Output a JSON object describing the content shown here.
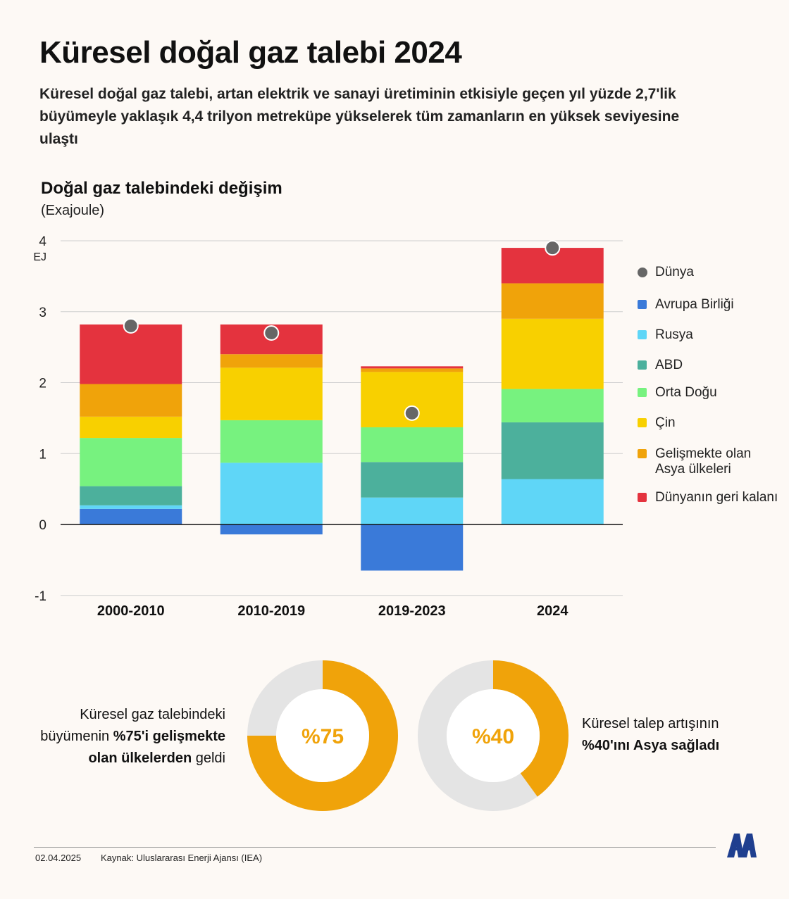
{
  "header": {
    "title": "Küresel doğal gaz talebi 2024",
    "subtitle": "Küresel doğal gaz talebi, artan elektrik ve sanayi üretiminin etkisiyle geçen yıl yüzde 2,7'lik büyümeyle yaklaşık 4,4 trilyon metreküpe yükselerek tüm zamanların en yüksek seviyesine ulaştı"
  },
  "colors": {
    "background": "#fdf9f5",
    "eu": "#3a7ad9",
    "russia": "#5fd6f7",
    "usa": "#4cb09c",
    "middle_east": "#77f27f",
    "china": "#f8d000",
    "dev_asia": "#f0a30a",
    "rest": "#e4333e",
    "world": "#666666",
    "donut_track": "#e4e4e4",
    "donut_fill": "#f0a30a"
  },
  "chart_data": {
    "type": "bar",
    "stacked": true,
    "title": "Doğal gaz talebindeki değişim",
    "unit_label": "(Exajoule)",
    "ylabel": "EJ",
    "ylim": [
      -1,
      4
    ],
    "yticks": [
      -1,
      0,
      1,
      2,
      3,
      4
    ],
    "categories": [
      "2000-2010",
      "2010-2019",
      "2019-2023",
      "2024"
    ],
    "series": [
      {
        "key": "eu",
        "name": "Avrupa Birliği",
        "values": [
          0.22,
          -0.14,
          -0.65,
          0
        ]
      },
      {
        "key": "russia",
        "name": "Rusya",
        "values": [
          0.05,
          0.87,
          0.38,
          0.64
        ]
      },
      {
        "key": "usa",
        "name": "ABD",
        "values": [
          0.27,
          0,
          0.5,
          0.8
        ]
      },
      {
        "key": "middle_east",
        "name": "Orta Doğu",
        "values": [
          0.68,
          0.6,
          0.49,
          0.47
        ]
      },
      {
        "key": "china",
        "name": "Çin",
        "values": [
          0.3,
          0.74,
          0.78,
          0.99
        ]
      },
      {
        "key": "dev_asia",
        "name": "Gelişmekte olan Asya ülkeleri",
        "values": [
          0.46,
          0.19,
          0.05,
          0.5
        ]
      },
      {
        "key": "rest",
        "name": "Dünyanın geri kalanı",
        "values": [
          0.84,
          0.42,
          0.03,
          0.5
        ]
      }
    ],
    "world": {
      "name": "Dünya",
      "values": [
        2.8,
        2.7,
        1.57,
        3.9
      ]
    }
  },
  "legend": [
    {
      "key": "world",
      "label": "Dünya",
      "marker": "circle"
    },
    {
      "key": "eu",
      "label": "Avrupa Birliği"
    },
    {
      "key": "russia",
      "label": "Rusya"
    },
    {
      "key": "usa",
      "label": "ABD"
    },
    {
      "key": "middle_east",
      "label": "Orta Doğu"
    },
    {
      "key": "china",
      "label": "Çin"
    },
    {
      "key": "dev_asia",
      "label": "Gelişmekte olan Asya ülkeleri"
    },
    {
      "key": "rest",
      "label": "Dünyanın geri kalanı"
    }
  ],
  "donuts": {
    "left": {
      "percent": 75,
      "label": "%75",
      "text_pre": "Küresel gaz talebindeki büyümenin ",
      "text_bold": "%75'i gelişmekte olan ülkelerden",
      "text_post": " geldi"
    },
    "right": {
      "percent": 40,
      "label": "%40",
      "text_pre": "Küresel talep artışının ",
      "text_bold": "%40'ını Asya sağladı",
      "text_post": ""
    }
  },
  "footer": {
    "date": "02.04.2025",
    "source": "Kaynak: Uluslararası Enerji Ajansı (IEA)"
  }
}
